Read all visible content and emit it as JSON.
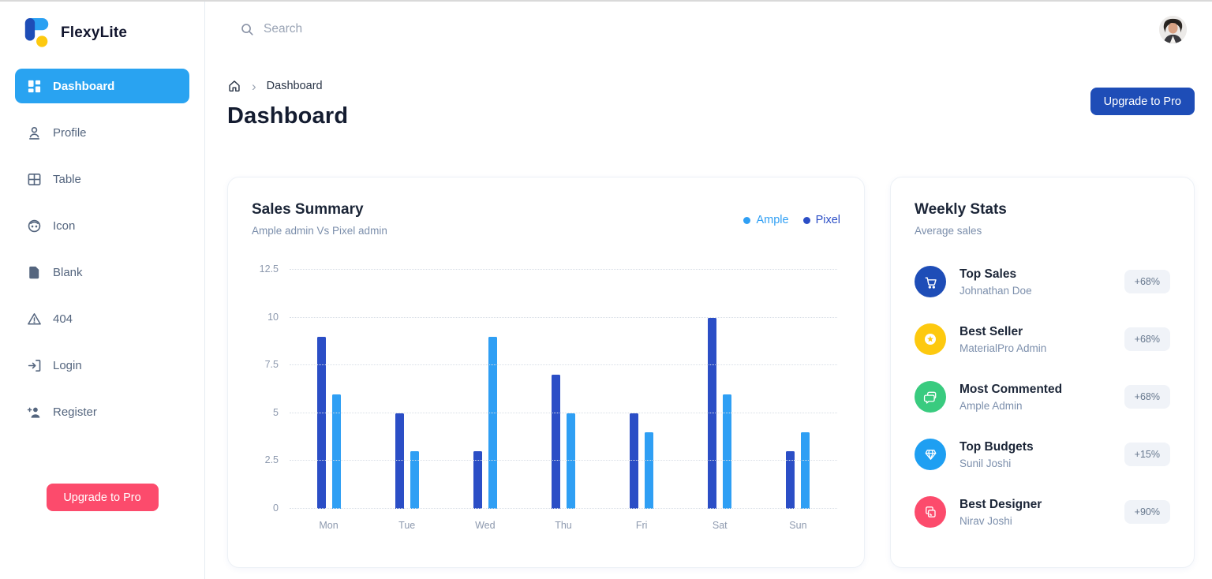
{
  "brand": {
    "name": "FlexyLite"
  },
  "colors": {
    "primary": "#1e4db7",
    "info": "#29a3f1",
    "danger": "#fc4b6c",
    "warning": "#fdc90f",
    "success": "#39cb7f"
  },
  "sidebar": {
    "items": [
      {
        "label": "Dashboard",
        "icon": "dashboard-grid",
        "active": true
      },
      {
        "label": "Profile",
        "icon": "user"
      },
      {
        "label": "Table",
        "icon": "table-grid"
      },
      {
        "label": "Icon",
        "icon": "face"
      },
      {
        "label": "Blank",
        "icon": "file"
      },
      {
        "label": "404",
        "icon": "warning-triangle"
      },
      {
        "label": "Login",
        "icon": "login-arrow"
      },
      {
        "label": "Register",
        "icon": "user-plus"
      }
    ],
    "upgrade_button": "Upgrade to Pro"
  },
  "topbar": {
    "search_placeholder": "Search"
  },
  "header": {
    "breadcrumb": {
      "separator": "›",
      "current": "Dashboard"
    },
    "title": "Dashboard",
    "upgrade_button": "Upgrade to Pro"
  },
  "sales_summary": {
    "title": "Sales Summary",
    "subtitle": "Ample admin Vs Pixel admin",
    "legend": [
      {
        "label": "Ample",
        "color": "#2f9ff4"
      },
      {
        "label": "Pixel",
        "color": "#2b4ec6"
      }
    ]
  },
  "chart_data": {
    "type": "bar",
    "title": "Sales Summary",
    "subtitle": "Ample admin Vs Pixel admin",
    "categories": [
      "Mon",
      "Tue",
      "Wed",
      "Thu",
      "Fri",
      "Sat",
      "Sun"
    ],
    "series": [
      {
        "name": "Ample",
        "color": "#2f9ff4",
        "values": [
          6,
          3,
          9,
          5,
          4,
          6,
          4
        ]
      },
      {
        "name": "Pixel",
        "color": "#2b4ec6",
        "values": [
          9,
          5,
          3,
          7,
          5,
          10,
          3
        ]
      }
    ],
    "bar_order_left_to_right": [
      "Pixel",
      "Ample"
    ],
    "xlabel": "",
    "ylabel": "",
    "ylim": [
      0,
      12.5
    ],
    "ytick_step": 2.5,
    "grid": "horizontal-dotted",
    "legend_position": "top-right"
  },
  "weekly_stats": {
    "title": "Weekly Stats",
    "subtitle": "Average sales",
    "items": [
      {
        "title": "Top Sales",
        "subtitle": "Johnathan Doe",
        "badge": "+68%",
        "color": "#1e4db7",
        "icon": "shopping-cart"
      },
      {
        "title": "Best Seller",
        "subtitle": "MaterialPro Admin",
        "badge": "+68%",
        "color": "#fdc90f",
        "icon": "star-circle"
      },
      {
        "title": "Most Commented",
        "subtitle": "Ample Admin",
        "badge": "+68%",
        "color": "#39cb7f",
        "icon": "comment-bubbles"
      },
      {
        "title": "Top Budgets",
        "subtitle": "Sunil Joshi",
        "badge": "+15%",
        "color": "#1e9ff2",
        "icon": "diamond"
      },
      {
        "title": "Best Designer",
        "subtitle": "Nirav Joshi",
        "badge": "+90%",
        "color": "#fc4b6c",
        "icon": "copy-layers"
      }
    ]
  }
}
